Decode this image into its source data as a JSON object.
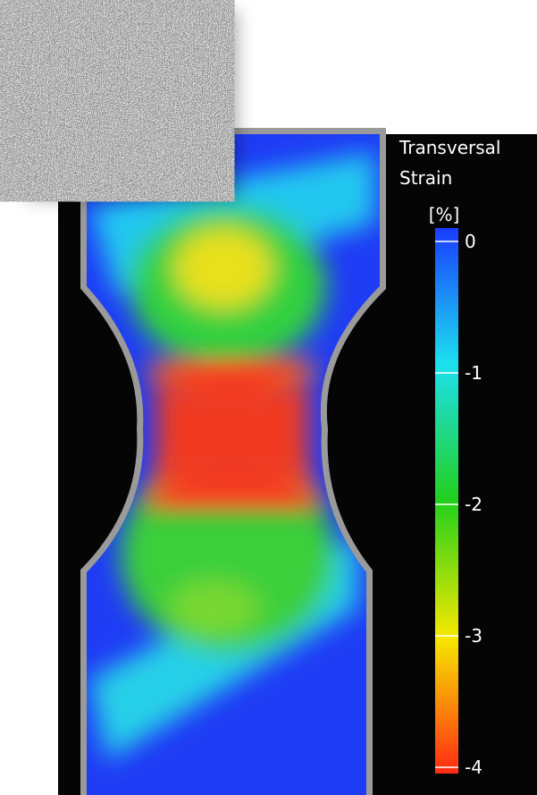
{
  "colorbar": {
    "title": [
      "Transversal",
      "Strain"
    ],
    "unit": "[%]",
    "ticks": [
      0,
      -1,
      -2,
      -3,
      -4
    ]
  }
}
